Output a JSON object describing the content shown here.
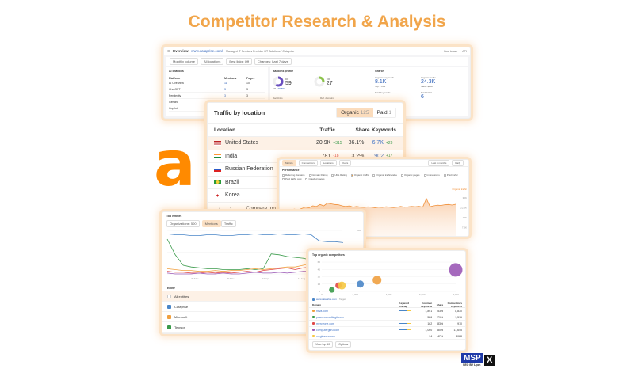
{
  "title": "Competitor Research & Analysis",
  "brand_color": "#f1a54a",
  "overview": {
    "heading": "Overview:",
    "url": "www.cataprise.com/",
    "breadcrumb": "Managed IT Services Provider / IT Solutions / Cataprise",
    "how_to_use": "How to use",
    "api": "API",
    "filters": [
      "Monthly volume",
      "All locations",
      "Best links: Off",
      "Changes: Last 7 days"
    ],
    "ai_citations": {
      "title": "AI citations",
      "columns": [
        "Platform",
        "Mentions",
        "Pages"
      ],
      "rows": [
        {
          "platform": "AI Overview",
          "mentions": "11",
          "pages": "10"
        },
        {
          "platform": "ChatGPT",
          "mentions": "3",
          "pages": "3"
        },
        {
          "platform": "Perplexity",
          "mentions": "3",
          "pages": "3"
        },
        {
          "platform": "Gemini",
          "mentions": "",
          "pages": ""
        },
        {
          "platform": "Copilot",
          "mentions": "",
          "pages": ""
        }
      ]
    },
    "backlink_profile": {
      "title": "Backlink profile",
      "dr_label": "DR",
      "dr_value": "59",
      "ur_label": "UR",
      "ur_value": "27",
      "ar_label": "AR",
      "ar_value": "135,590",
      "backlinks_label": "Backlinks",
      "ref_domains_label": "Ref. domains"
    },
    "search": {
      "title": "Search",
      "organic_keywords_label": "Organic keywords",
      "organic_keywords": "8.1K",
      "top3_label": "Top 3",
      "top3": "284",
      "organic_traffic_label": "Organic traffic",
      "organic_traffic": "24.3K",
      "value_label": "Value",
      "value": "$20K",
      "paid_keywords_label": "Paid keywords",
      "paid_traffic_label": "Paid traffic",
      "paid_traffic": "6"
    }
  },
  "traffic_by_location": {
    "title": "Traffic by location",
    "tabs": [
      {
        "label": "Organic",
        "count": "125",
        "active": true
      },
      {
        "label": "Paid",
        "count": "1",
        "active": false
      }
    ],
    "columns": [
      "Location",
      "Traffic",
      "Share",
      "Keywords"
    ],
    "rows": [
      {
        "location": "United States",
        "traffic": "20.9K",
        "change": "+315",
        "share": "86.1%",
        "keywords": "6.7K",
        "kw_change": "+23"
      },
      {
        "location": "India",
        "traffic": "781",
        "change": "-18",
        "share": "3.2%",
        "keywords": "902",
        "kw_change": "+17"
      },
      {
        "location": "Russian Federation",
        "traffic": "",
        "change": "",
        "share": "",
        "keywords": "",
        "kw_change": ""
      },
      {
        "location": "Brazil",
        "traffic": "",
        "change": "",
        "share": "",
        "keywords": "",
        "kw_change": ""
      },
      {
        "location": "Korea",
        "traffic": "",
        "change": "",
        "share": "",
        "keywords": "",
        "kw_change": ""
      }
    ],
    "compare_label": "Compare top"
  },
  "performance": {
    "tabs": [
      "Metrics",
      "Competitors",
      "Locations",
      "Years"
    ],
    "dropdowns": [
      "Last 6 months",
      "Daily"
    ],
    "title": "Performance",
    "checkboxes": [
      {
        "label": "Referring domains",
        "checked": false
      },
      {
        "label": "Domain Rating",
        "checked": false
      },
      {
        "label": "URL Rating",
        "checked": false
      },
      {
        "label": "Organic traffic",
        "checked": true
      },
      {
        "label": "Organic traffic value",
        "checked": false
      },
      {
        "label": "Organic pages",
        "checked": false
      },
      {
        "label": "Impressions",
        "checked": false
      },
      {
        "label": "Paid traffic",
        "checked": false
      },
      {
        "label": "Paid traffic cost",
        "checked": false
      },
      {
        "label": "Crawled pages",
        "checked": false
      }
    ],
    "legend": "Organic traffic",
    "y_ticks": [
      "30K",
      "22.5K",
      "15K",
      "7.5K"
    ],
    "series": [
      20,
      20.5,
      20.3,
      21,
      21.5,
      21,
      22,
      23,
      22.5,
      24,
      23.5,
      25,
      24,
      26,
      25.5,
      25,
      24.8,
      24,
      23.5,
      24,
      23,
      23.5,
      23,
      22.8,
      23.2,
      23,
      22.5,
      23,
      22.8,
      23.3,
      23,
      22.7,
      23,
      23.5,
      23,
      23.2,
      23.5,
      23.3,
      23.6,
      23,
      29.5,
      23.4,
      24,
      24.5,
      24.3,
      24.8,
      25,
      24.6,
      25.2
    ]
  },
  "top_entities": {
    "title": "Top entities",
    "dropdown": "Organizations: 500",
    "tabs": [
      {
        "label": "Mentions",
        "active": true
      },
      {
        "label": "Traffic",
        "active": false
      }
    ],
    "x_ticks": [
      "20 Mar",
      "20 Mar",
      "10 Apr",
      "11 Aug",
      "4 Jun"
    ],
    "y_ticks": [
      "100",
      "75",
      "50"
    ],
    "entity_header": "Entity",
    "entities": [
      {
        "name": "All entities",
        "color": "#ffffff"
      },
      {
        "name": "Cataprise",
        "color": "#4a86c8"
      },
      {
        "name": "Microsoft",
        "color": "#f0a040"
      },
      {
        "name": "Tekmon",
        "color": "#3a9a4a"
      },
      {
        "name": "T-Mobile",
        "color": "#e04848"
      },
      {
        "name": "TeleCom",
        "color": "#9b59b6"
      }
    ],
    "series": [
      {
        "color": "#4a86c8",
        "values": [
          96,
          95,
          95,
          94,
          94,
          95,
          95,
          94,
          94,
          95,
          95,
          96,
          95,
          95,
          96,
          95,
          95,
          96,
          95,
          88,
          87,
          87,
          86
        ]
      },
      {
        "color": "#3a9a4a",
        "values": [
          90,
          72,
          60,
          58,
          57,
          56,
          56,
          55,
          55,
          55,
          56,
          55,
          56,
          73,
          72,
          70,
          69,
          68,
          66,
          65,
          64,
          64,
          63
        ]
      },
      {
        "color": "#f0a040",
        "values": [
          56,
          55,
          54,
          54,
          53,
          53,
          54,
          53,
          54,
          54,
          55,
          56,
          55,
          56,
          57,
          58,
          58,
          60,
          62,
          65,
          64,
          70,
          71
        ]
      },
      {
        "color": "#e04848",
        "values": [
          53,
          52,
          52,
          51,
          51,
          52,
          51,
          52,
          51,
          52,
          53,
          52,
          54,
          55,
          56,
          57,
          55,
          57,
          58,
          57,
          58,
          58,
          59
        ]
      },
      {
        "color": "#9b59b6",
        "values": [
          51,
          50,
          50,
          50,
          51,
          50,
          50,
          51,
          50,
          50,
          51,
          52,
          51,
          51,
          52,
          51,
          52,
          53,
          53,
          54,
          53,
          54,
          54
        ]
      }
    ]
  },
  "organic_competitors": {
    "title": "Top organic competitors",
    "y_ticks": [
      "60",
      "45",
      "30",
      "15",
      "0"
    ],
    "x_ticks": [
      "0",
      "2,000",
      "4,000",
      "6,000",
      "8,000"
    ],
    "target": "www.cataprise.com",
    "target_suffix": "Target",
    "bubbles": [
      {
        "color": "#3a9a4a",
        "x": 600,
        "y": 3,
        "size": 4
      },
      {
        "color": "#e04848",
        "x": 1000,
        "y": 12,
        "size": 5
      },
      {
        "color": "#f5c842",
        "x": 1200,
        "y": 12,
        "size": 7
      },
      {
        "color": "#4a86c8",
        "x": 2300,
        "y": 15,
        "size": 6
      },
      {
        "color": "#f0a040",
        "x": 3300,
        "y": 23,
        "size": 8
      },
      {
        "color": "#9b59b6",
        "x": 8000,
        "y": 44,
        "size": 14
      }
    ],
    "columns": [
      "Domain",
      "Keyword overlap",
      "Common keywords",
      "Share",
      "Competitor's keywords"
    ],
    "rows": [
      {
        "domain": "ntiva.com",
        "color": "#f0a040",
        "common": "1,891",
        "share": "53%",
        "comp": "8,830"
      },
      {
        "domain": "powerconsultingit.com",
        "color": "#3a9a4a",
        "common": "586",
        "share": "79%",
        "comp": "1,516"
      },
      {
        "domain": "mercyone.com",
        "color": "#e04848",
        "common": "162",
        "share": "83%",
        "comp": "910"
      },
      {
        "domain": "computerguru.com",
        "color": "#9b59b6",
        "common": "1,000",
        "share": "80%",
        "comp": "11,645"
      },
      {
        "domain": "myglasses.com",
        "color": "#f5c842",
        "common": "94",
        "share": "47%",
        "comp": "3028"
      }
    ],
    "view_label": "View top 10",
    "export_label": "Options"
  },
  "logos": {
    "ahrefs": "a",
    "msp": "MSP",
    "msp_x": "X",
    "msp_sub": "SEO BY Lyon"
  }
}
